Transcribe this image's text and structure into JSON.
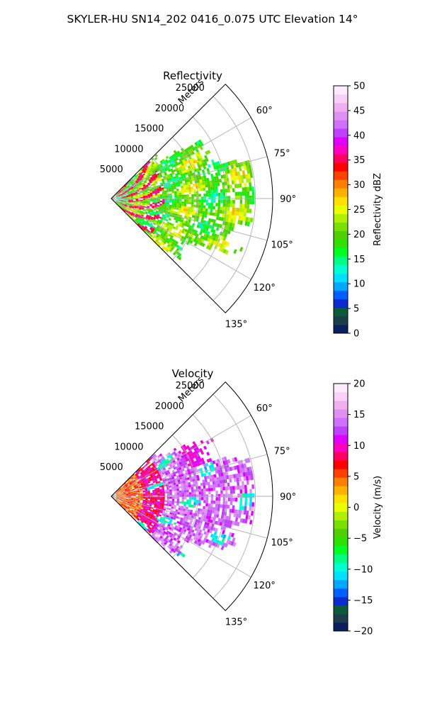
{
  "suptitle": "SKYLER-HU  SN14_202  0416_0.075 UTC Elevation 14°",
  "chart_data": [
    {
      "type": "heatmap",
      "subtype": "polar-sector",
      "title": "Reflectivity",
      "range_label": "Meters",
      "range_ticks": [
        5000,
        10000,
        15000,
        20000,
        25000
      ],
      "range_tick_labels": [
        "5000",
        "10000",
        "15000",
        "20000",
        "25000"
      ],
      "rmax": 28000,
      "theta_range_deg": [
        45,
        135
      ],
      "theta_ticks": [
        60,
        75,
        90,
        105,
        120,
        135
      ],
      "theta_tick_labels": [
        "60°",
        "75°",
        "90°",
        "105°",
        "120°",
        "135°"
      ],
      "grid": true,
      "colorbar": {
        "label": "Reflectivity dBZ",
        "vmin": 0,
        "vmax": 50,
        "ticks": [
          0,
          5,
          10,
          15,
          20,
          25,
          30,
          35,
          40,
          45,
          50
        ],
        "tick_labels": [
          "0",
          "5",
          "10",
          "15",
          "20",
          "25",
          "30",
          "35",
          "40",
          "45",
          "50"
        ],
        "colors": [
          "#0a1f5c",
          "#1c3e4a",
          "#0c5a3a",
          "#0a2bd0",
          "#0060ff",
          "#00a8ff",
          "#00e0ff",
          "#00ffd0",
          "#00ff80",
          "#00ff20",
          "#30e000",
          "#50d000",
          "#7ae000",
          "#b0f000",
          "#e8ff00",
          "#ffe000",
          "#ffb000",
          "#ff8000",
          "#ff4000",
          "#ff0000",
          "#ff0060",
          "#ff00c0",
          "#e000ff",
          "#c040ff",
          "#d070ff",
          "#e090f0",
          "#f0b0f0",
          "#f8d0f8",
          "#fdeafd"
        ]
      },
      "dominant_values": {
        "background_echo": [
          15,
          25
        ],
        "enhanced_cells": [
          30,
          38
        ]
      }
    },
    {
      "type": "heatmap",
      "subtype": "polar-sector",
      "title": "Velocity",
      "range_label": "Meters",
      "range_ticks": [
        5000,
        10000,
        15000,
        20000,
        25000
      ],
      "range_tick_labels": [
        "5000",
        "10000",
        "15000",
        "20000",
        "25000"
      ],
      "rmax": 28000,
      "theta_range_deg": [
        45,
        135
      ],
      "theta_ticks": [
        60,
        75,
        90,
        105,
        120,
        135
      ],
      "theta_tick_labels": [
        "60°",
        "75°",
        "90°",
        "105°",
        "120°",
        "135°"
      ],
      "grid": true,
      "colorbar": {
        "label": "Velocity (m/s)",
        "vmin": -20,
        "vmax": 20,
        "ticks": [
          -20,
          -15,
          -10,
          -5,
          0,
          5,
          10,
          15,
          20
        ],
        "tick_labels": [
          "−20",
          "−15",
          "−10",
          "−5",
          "0",
          "5",
          "10",
          "15",
          "20"
        ],
        "colors": [
          "#0a1f5c",
          "#1c3e4a",
          "#0c5a3a",
          "#0a2bd0",
          "#0060ff",
          "#00a8ff",
          "#00e0ff",
          "#00ffd0",
          "#00ff80",
          "#00ff20",
          "#30e000",
          "#50d000",
          "#7ae000",
          "#b0f000",
          "#e8ff00",
          "#ffe000",
          "#ffb000",
          "#ff8000",
          "#ff4000",
          "#ff0000",
          "#ff0060",
          "#ff00c0",
          "#e000ff",
          "#c040ff",
          "#d070ff",
          "#e090f0",
          "#f0b0f0",
          "#f8d0f8",
          "#fdeafd"
        ]
      },
      "dominant_values": {
        "near_field": [
          2,
          8
        ],
        "mid_field": [
          10,
          15
        ],
        "inbound_pockets": [
          -12,
          -8
        ]
      }
    }
  ]
}
